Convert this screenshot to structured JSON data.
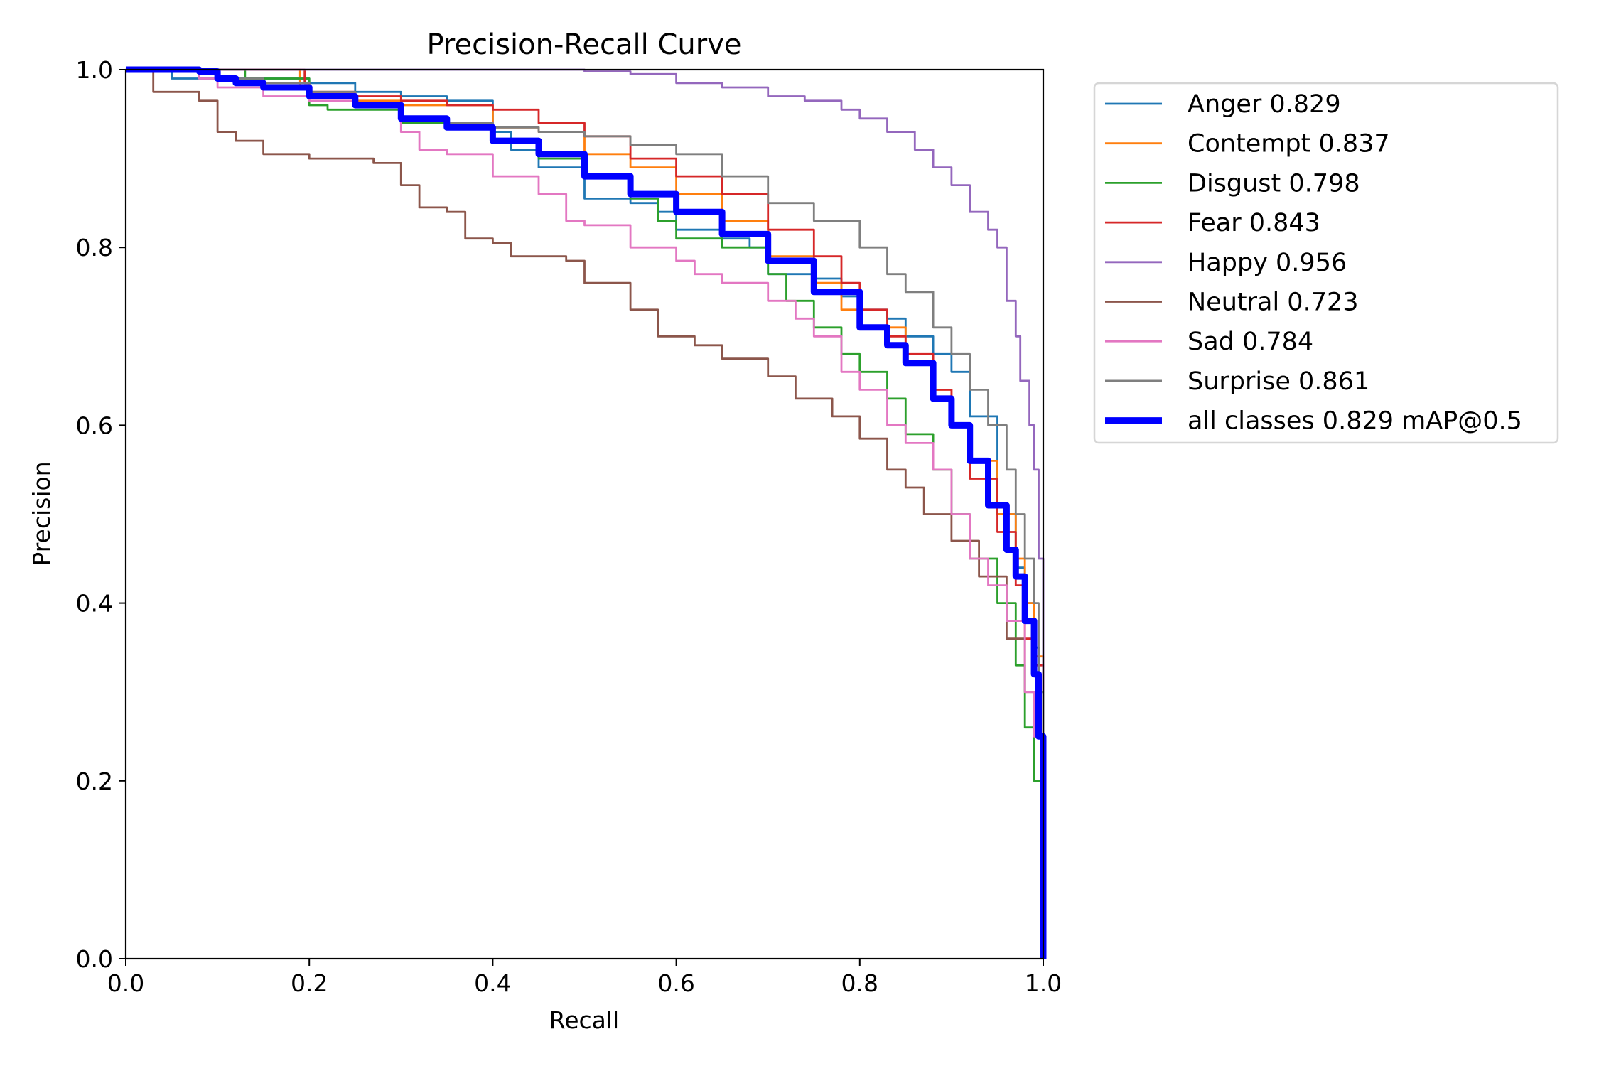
{
  "chart_data": {
    "type": "line",
    "title": "Precision-Recall Curve",
    "xlabel": "Recall",
    "ylabel": "Precision",
    "xlim": [
      0.0,
      1.0
    ],
    "ylim": [
      0.0,
      1.0
    ],
    "xticks": [
      "0.0",
      "0.2",
      "0.4",
      "0.6",
      "0.8",
      "1.0"
    ],
    "yticks": [
      "0.0",
      "0.2",
      "0.4",
      "0.6",
      "0.8",
      "1.0"
    ],
    "grid": false,
    "legend_position": "outside-top-right",
    "series": [
      {
        "name": "Anger 0.829",
        "color": "#1f77b4",
        "width": "thin",
        "x": [
          0,
          0.05,
          0.1,
          0.2,
          0.25,
          0.3,
          0.35,
          0.4,
          0.42,
          0.45,
          0.5,
          0.55,
          0.58,
          0.6,
          0.65,
          0.68,
          0.7,
          0.75,
          0.78,
          0.8,
          0.83,
          0.85,
          0.88,
          0.9,
          0.92,
          0.95,
          0.97,
          0.98,
          0.99,
          0.995,
          1.0,
          1.0
        ],
        "y": [
          1.0,
          0.99,
          0.99,
          0.985,
          0.975,
          0.97,
          0.965,
          0.93,
          0.91,
          0.89,
          0.855,
          0.85,
          0.84,
          0.82,
          0.81,
          0.8,
          0.77,
          0.765,
          0.745,
          0.73,
          0.72,
          0.7,
          0.68,
          0.66,
          0.61,
          0.5,
          0.44,
          0.4,
          0.35,
          0.3,
          0.2,
          0.0
        ]
      },
      {
        "name": "Contempt 0.837",
        "color": "#ff7f0e",
        "width": "thin",
        "x": [
          0,
          0.18,
          0.19,
          0.2,
          0.25,
          0.3,
          0.35,
          0.4,
          0.45,
          0.5,
          0.55,
          0.6,
          0.65,
          0.7,
          0.75,
          0.78,
          0.8,
          0.85,
          0.88,
          0.9,
          0.92,
          0.95,
          0.97,
          0.98,
          0.99,
          1.0,
          1.0
        ],
        "y": [
          1.0,
          1.0,
          0.98,
          0.975,
          0.965,
          0.96,
          0.96,
          0.935,
          0.93,
          0.905,
          0.89,
          0.86,
          0.83,
          0.79,
          0.76,
          0.73,
          0.71,
          0.67,
          0.64,
          0.6,
          0.56,
          0.5,
          0.45,
          0.4,
          0.34,
          0.25,
          0.0
        ]
      },
      {
        "name": "Disgust 0.798",
        "color": "#2ca02c",
        "width": "thin",
        "x": [
          0,
          0.12,
          0.13,
          0.2,
          0.22,
          0.25,
          0.3,
          0.35,
          0.4,
          0.45,
          0.5,
          0.55,
          0.58,
          0.6,
          0.65,
          0.7,
          0.72,
          0.75,
          0.78,
          0.8,
          0.83,
          0.85,
          0.88,
          0.9,
          0.92,
          0.95,
          0.97,
          0.98,
          0.99,
          1.0,
          1.0
        ],
        "y": [
          1.0,
          1.0,
          0.99,
          0.96,
          0.955,
          0.955,
          0.94,
          0.935,
          0.92,
          0.9,
          0.88,
          0.855,
          0.83,
          0.81,
          0.8,
          0.77,
          0.74,
          0.71,
          0.68,
          0.66,
          0.63,
          0.59,
          0.55,
          0.5,
          0.45,
          0.4,
          0.33,
          0.26,
          0.2,
          0.18,
          0.0
        ]
      },
      {
        "name": "Fear 0.843",
        "color": "#d62728",
        "width": "thin",
        "x": [
          0,
          0.19,
          0.195,
          0.2,
          0.25,
          0.3,
          0.35,
          0.4,
          0.45,
          0.5,
          0.55,
          0.6,
          0.65,
          0.7,
          0.75,
          0.78,
          0.8,
          0.83,
          0.85,
          0.88,
          0.9,
          0.92,
          0.95,
          0.97,
          0.98,
          0.99,
          1.0,
          1.0
        ],
        "y": [
          1.0,
          1.0,
          0.985,
          0.975,
          0.97,
          0.965,
          0.96,
          0.955,
          0.94,
          0.925,
          0.9,
          0.88,
          0.86,
          0.82,
          0.79,
          0.76,
          0.73,
          0.7,
          0.68,
          0.64,
          0.6,
          0.54,
          0.48,
          0.42,
          0.36,
          0.33,
          0.22,
          0.0
        ]
      },
      {
        "name": "Happy 0.956",
        "color": "#9467bd",
        "width": "thin",
        "x": [
          0,
          0.4,
          0.5,
          0.55,
          0.6,
          0.65,
          0.7,
          0.74,
          0.78,
          0.8,
          0.83,
          0.86,
          0.88,
          0.9,
          0.92,
          0.94,
          0.95,
          0.96,
          0.97,
          0.975,
          0.985,
          0.99,
          0.995,
          1.0,
          1.0
        ],
        "y": [
          1.0,
          1.0,
          0.998,
          0.995,
          0.985,
          0.98,
          0.97,
          0.965,
          0.955,
          0.945,
          0.93,
          0.91,
          0.89,
          0.87,
          0.84,
          0.82,
          0.8,
          0.74,
          0.7,
          0.65,
          0.6,
          0.55,
          0.45,
          0.3,
          0.0
        ]
      },
      {
        "name": "Neutral 0.723",
        "color": "#8c564b",
        "width": "thin",
        "x": [
          0,
          0.03,
          0.08,
          0.1,
          0.12,
          0.15,
          0.2,
          0.27,
          0.3,
          0.32,
          0.35,
          0.37,
          0.4,
          0.42,
          0.48,
          0.5,
          0.55,
          0.58,
          0.62,
          0.65,
          0.68,
          0.7,
          0.73,
          0.77,
          0.8,
          0.83,
          0.85,
          0.87,
          0.9,
          0.93,
          0.96,
          0.98,
          0.99,
          1.0,
          1.0
        ],
        "y": [
          1.0,
          0.975,
          0.965,
          0.93,
          0.92,
          0.905,
          0.9,
          0.895,
          0.87,
          0.845,
          0.84,
          0.81,
          0.805,
          0.79,
          0.785,
          0.76,
          0.73,
          0.7,
          0.69,
          0.675,
          0.675,
          0.655,
          0.63,
          0.61,
          0.585,
          0.55,
          0.53,
          0.5,
          0.47,
          0.43,
          0.36,
          0.3,
          0.25,
          0.2,
          0.0
        ]
      },
      {
        "name": "Sad 0.784",
        "color": "#e377c2",
        "width": "thin",
        "x": [
          0,
          0.08,
          0.1,
          0.15,
          0.2,
          0.25,
          0.3,
          0.32,
          0.35,
          0.4,
          0.45,
          0.48,
          0.5,
          0.55,
          0.6,
          0.62,
          0.65,
          0.7,
          0.73,
          0.75,
          0.78,
          0.8,
          0.83,
          0.85,
          0.88,
          0.9,
          0.92,
          0.94,
          0.96,
          0.98,
          0.99,
          1.0,
          1.0
        ],
        "y": [
          1.0,
          0.99,
          0.98,
          0.97,
          0.965,
          0.96,
          0.93,
          0.91,
          0.905,
          0.88,
          0.86,
          0.83,
          0.825,
          0.8,
          0.785,
          0.77,
          0.76,
          0.74,
          0.72,
          0.7,
          0.66,
          0.64,
          0.6,
          0.58,
          0.55,
          0.5,
          0.45,
          0.42,
          0.38,
          0.3,
          0.25,
          0.2,
          0.0
        ]
      },
      {
        "name": "Surprise 0.861",
        "color": "#7f7f7f",
        "width": "thin",
        "x": [
          0,
          0.1,
          0.15,
          0.2,
          0.25,
          0.3,
          0.35,
          0.4,
          0.45,
          0.5,
          0.55,
          0.6,
          0.65,
          0.7,
          0.75,
          0.8,
          0.83,
          0.85,
          0.88,
          0.9,
          0.92,
          0.94,
          0.96,
          0.97,
          0.98,
          0.99,
          0.995,
          1.0,
          1.0
        ],
        "y": [
          1.0,
          0.99,
          0.985,
          0.975,
          0.96,
          0.945,
          0.94,
          0.935,
          0.93,
          0.925,
          0.915,
          0.905,
          0.88,
          0.85,
          0.83,
          0.8,
          0.77,
          0.75,
          0.71,
          0.68,
          0.64,
          0.6,
          0.55,
          0.5,
          0.45,
          0.4,
          0.3,
          0.25,
          0.0
        ]
      },
      {
        "name": "all classes 0.829 mAP@0.5",
        "color": "#0000ff",
        "width": "thick",
        "x": [
          0,
          0.05,
          0.08,
          0.1,
          0.12,
          0.15,
          0.2,
          0.25,
          0.3,
          0.35,
          0.4,
          0.45,
          0.5,
          0.55,
          0.6,
          0.65,
          0.7,
          0.75,
          0.8,
          0.83,
          0.85,
          0.88,
          0.9,
          0.92,
          0.94,
          0.96,
          0.97,
          0.98,
          0.99,
          0.995,
          1.0,
          1.0
        ],
        "y": [
          1.0,
          1.0,
          0.998,
          0.99,
          0.985,
          0.98,
          0.97,
          0.96,
          0.945,
          0.935,
          0.92,
          0.905,
          0.88,
          0.86,
          0.84,
          0.815,
          0.785,
          0.75,
          0.71,
          0.69,
          0.67,
          0.63,
          0.6,
          0.56,
          0.51,
          0.46,
          0.43,
          0.38,
          0.32,
          0.25,
          0.15,
          0.0
        ]
      }
    ]
  }
}
